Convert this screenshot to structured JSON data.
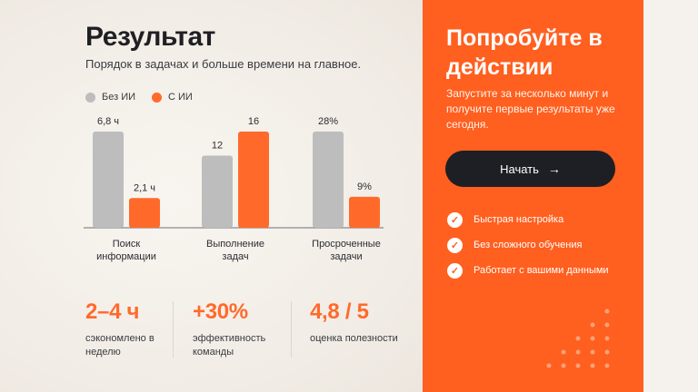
{
  "left": {
    "title": "Результат",
    "subtitle": "Порядок в задачах и больше времени на главное.",
    "legend": [
      {
        "label": "Без ИИ",
        "color": "#bdbdbd"
      },
      {
        "label": "С ИИ",
        "color": "#ff6a2b"
      }
    ]
  },
  "chart_data": {
    "type": "bar",
    "categories": [
      "Поиск информации",
      "Выполнение задач",
      "Просроченные задачи"
    ],
    "category_lines": [
      [
        "Поиск",
        "информации"
      ],
      [
        "Выполнение",
        "задач"
      ],
      [
        "Просроченные",
        "задачи"
      ]
    ],
    "series": [
      {
        "name": "Без ИИ",
        "values": [
          6.8,
          12,
          28
        ],
        "labels": [
          "6,8 ч",
          "12",
          "28%"
        ],
        "max": [
          6.8,
          16,
          28
        ],
        "color": "#bdbdbd"
      },
      {
        "name": "С ИИ",
        "values": [
          2.1,
          16,
          9
        ],
        "labels": [
          "2,1 ч",
          "16",
          "9%"
        ],
        "max": [
          6.8,
          16,
          28
        ],
        "color": "#ff6a2b"
      }
    ],
    "title": "",
    "xlabel": "",
    "ylabel": ""
  },
  "stats": [
    {
      "value": "2–4 ч",
      "label": "сэкономлено в неделю"
    },
    {
      "value": "+30%",
      "label": "эффективность команды"
    },
    {
      "value": "4,8 / 5",
      "label": "оценка полезности"
    }
  ],
  "cta": {
    "title": "Попробуйте в действии",
    "text": "Запустите за несколько минут и получите первые результаты уже сегодня.",
    "button_label": "Начать",
    "button_icon": "arrow-right-icon",
    "features": [
      "Быстрая настройка",
      "Без сложного обучения",
      "Работает с вашими данными"
    ]
  },
  "colors": {
    "accent": "#ff5f1f",
    "dark": "#1d1f24",
    "grey": "#bdbdbd"
  }
}
